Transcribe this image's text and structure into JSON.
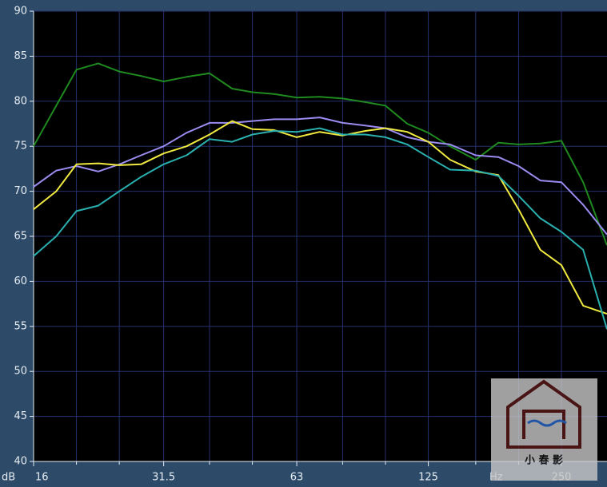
{
  "chart_data": {
    "type": "line",
    "y_unit": "dB",
    "x_unit": "Hz",
    "log_x": true,
    "grid": true,
    "x": [
      16,
      18,
      20,
      22.4,
      25,
      28,
      31.5,
      35.5,
      40,
      45,
      50,
      56,
      63,
      71,
      80,
      90,
      100,
      112,
      125,
      140,
      160,
      180,
      200,
      224,
      250,
      280,
      317
    ],
    "series": [
      {
        "color": "#1f8a1f",
        "values": [
          75,
          79.5,
          83.5,
          84.2,
          83.3,
          82.8,
          82.2,
          82.7,
          83.1,
          81.4,
          81.0,
          80.8,
          80.4,
          80.5,
          80.3,
          79.9,
          79.5,
          77.5,
          76.5,
          75.0,
          73.5,
          75.4,
          75.2,
          75.3,
          75.6,
          71.0,
          64.0
        ]
      },
      {
        "color": "#9a8cf0",
        "values": [
          70.5,
          72.3,
          72.8,
          72.2,
          73.0,
          74.0,
          75.0,
          76.5,
          77.6,
          77.6,
          77.8,
          78.0,
          78.0,
          78.2,
          77.6,
          77.3,
          77.0,
          76.0,
          75.5,
          75.2,
          74.0,
          73.8,
          72.8,
          71.2,
          71.0,
          68.5,
          65.2
        ]
      },
      {
        "color": "#f0ea40",
        "values": [
          68.0,
          70.0,
          73.0,
          73.1,
          72.9,
          73.0,
          74.2,
          75.0,
          76.3,
          77.8,
          76.9,
          76.8,
          76.0,
          76.6,
          76.2,
          76.7,
          77.0,
          76.6,
          75.5,
          73.5,
          72.2,
          71.8,
          68.0,
          63.5,
          61.8,
          57.3,
          56.4
        ]
      },
      {
        "color": "#2bb0b0",
        "values": [
          62.8,
          65.0,
          67.8,
          68.4,
          70.0,
          71.6,
          73.0,
          74.0,
          75.8,
          75.5,
          76.3,
          76.7,
          76.6,
          77.0,
          76.3,
          76.3,
          76.0,
          75.2,
          73.8,
          72.4,
          72.3,
          71.7,
          69.5,
          67.0,
          65.5,
          63.5,
          54.7
        ]
      }
    ],
    "xlim": [
      16,
      317
    ],
    "ylim": [
      40,
      90
    ],
    "xticks": [
      16,
      31.5,
      63,
      125,
      250
    ],
    "x_minor_ticks": [
      20,
      25,
      40,
      50,
      80,
      100,
      160,
      200
    ],
    "yticks": [
      40,
      45,
      50,
      55,
      60,
      65,
      70,
      75,
      80,
      85,
      90
    ],
    "watermark": "小 春 影"
  }
}
